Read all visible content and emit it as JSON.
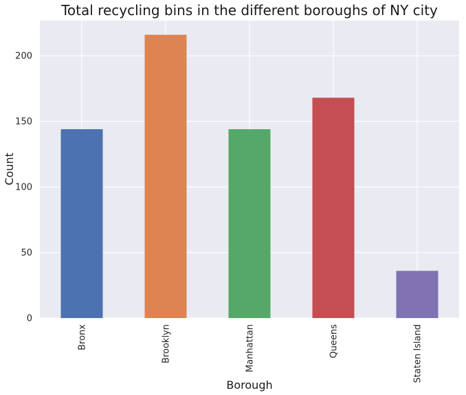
{
  "chart_data": {
    "type": "bar",
    "title": "Total recycling bins in the different boroughs of NY city",
    "xlabel": "Borough",
    "ylabel": "Count",
    "categories": [
      "Bronx",
      "Brooklyn",
      "Manhattan",
      "Queens",
      "Staten Island"
    ],
    "values": [
      144,
      216,
      144,
      168,
      36
    ],
    "colors": [
      "#4c72b0",
      "#dd8452",
      "#55a868",
      "#c44e52",
      "#8172b3"
    ],
    "yticks": [
      0,
      50,
      100,
      150,
      200
    ],
    "ylim": [
      0,
      226.8
    ],
    "grid": true,
    "background": "#eaeaf2"
  }
}
